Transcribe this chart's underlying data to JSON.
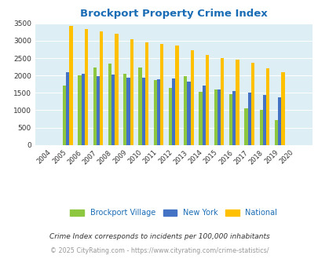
{
  "title": "Brockport Property Crime Index",
  "years": [
    "2004",
    "2005",
    "2006",
    "2007",
    "2008",
    "2009",
    "2010",
    "2011",
    "2012",
    "2013",
    "2014",
    "2015",
    "2016",
    "2017",
    "2018",
    "2019",
    "2020"
  ],
  "brockport": [
    0,
    1720,
    2010,
    2230,
    2340,
    2040,
    2230,
    1870,
    1650,
    1990,
    1530,
    1590,
    1460,
    1050,
    1000,
    720,
    0
  ],
  "new_york": [
    0,
    2090,
    2040,
    1990,
    2020,
    1940,
    1940,
    1900,
    1920,
    1820,
    1700,
    1600,
    1550,
    1510,
    1450,
    1370,
    0
  ],
  "national": [
    0,
    3420,
    3340,
    3270,
    3210,
    3050,
    2960,
    2910,
    2860,
    2720,
    2590,
    2490,
    2460,
    2370,
    2200,
    2100,
    0
  ],
  "bar_colors": {
    "brockport": "#8dc63f",
    "new_york": "#4472c4",
    "national": "#ffc000"
  },
  "ylim": [
    0,
    3500
  ],
  "yticks": [
    0,
    500,
    1000,
    1500,
    2000,
    2500,
    3000,
    3500
  ],
  "bg_color": "#ddeef5",
  "grid_color": "#ffffff",
  "title_color": "#1a6db5",
  "legend_labels": [
    "Brockport Village",
    "New York",
    "National"
  ],
  "legend_text_color": "#1a6db5",
  "footnote1": "Crime Index corresponds to incidents per 100,000 inhabitants",
  "footnote2": "© 2025 CityRating.com - https://www.cityrating.com/crime-statistics/",
  "footnote_color1": "#333333",
  "footnote_color2": "#999999"
}
